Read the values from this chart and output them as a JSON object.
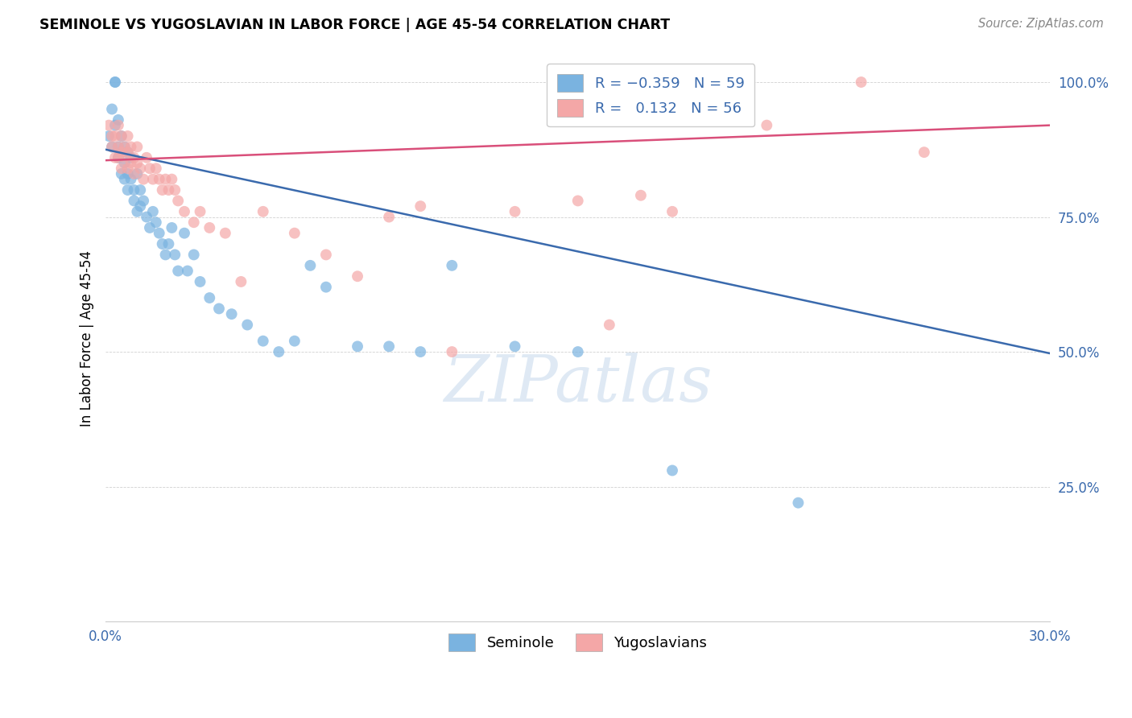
{
  "title": "SEMINOLE VS YUGOSLAVIAN IN LABOR FORCE | AGE 45-54 CORRELATION CHART",
  "source": "Source: ZipAtlas.com",
  "ylabel": "In Labor Force | Age 45-54",
  "xlim": [
    0.0,
    0.3
  ],
  "ylim": [
    0.0,
    1.05
  ],
  "xticks": [
    0.0,
    0.05,
    0.1,
    0.15,
    0.2,
    0.25,
    0.3
  ],
  "ytick_positions": [
    0.25,
    0.5,
    0.75,
    1.0
  ],
  "ytick_labels": [
    "25.0%",
    "50.0%",
    "75.0%",
    "100.0%"
  ],
  "seminole_R": -0.359,
  "seminole_N": 59,
  "yugoslavian_R": 0.132,
  "yugoslavian_N": 56,
  "seminole_color": "#7ab3e0",
  "yugoslavian_color": "#f4a7a7",
  "seminole_line_color": "#3a6aad",
  "yugoslavian_line_color": "#d94f7a",
  "watermark": "ZIPatlas",
  "seminole_x": [
    0.001,
    0.002,
    0.002,
    0.003,
    0.003,
    0.003,
    0.004,
    0.004,
    0.004,
    0.005,
    0.005,
    0.005,
    0.006,
    0.006,
    0.006,
    0.007,
    0.007,
    0.007,
    0.008,
    0.008,
    0.009,
    0.009,
    0.01,
    0.01,
    0.011,
    0.011,
    0.012,
    0.013,
    0.014,
    0.015,
    0.016,
    0.017,
    0.018,
    0.019,
    0.02,
    0.021,
    0.022,
    0.023,
    0.025,
    0.026,
    0.028,
    0.03,
    0.033,
    0.036,
    0.04,
    0.045,
    0.05,
    0.055,
    0.06,
    0.065,
    0.07,
    0.08,
    0.09,
    0.1,
    0.11,
    0.13,
    0.15,
    0.18,
    0.22
  ],
  "seminole_y": [
    0.9,
    0.88,
    0.95,
    1.0,
    1.0,
    0.92,
    0.88,
    0.86,
    0.93,
    0.87,
    0.83,
    0.9,
    0.88,
    0.85,
    0.82,
    0.87,
    0.83,
    0.8,
    0.86,
    0.82,
    0.8,
    0.78,
    0.83,
    0.76,
    0.8,
    0.77,
    0.78,
    0.75,
    0.73,
    0.76,
    0.74,
    0.72,
    0.7,
    0.68,
    0.7,
    0.73,
    0.68,
    0.65,
    0.72,
    0.65,
    0.68,
    0.63,
    0.6,
    0.58,
    0.57,
    0.55,
    0.52,
    0.5,
    0.52,
    0.66,
    0.62,
    0.51,
    0.51,
    0.5,
    0.66,
    0.51,
    0.5,
    0.28,
    0.22
  ],
  "yugoslavian_x": [
    0.001,
    0.002,
    0.002,
    0.003,
    0.003,
    0.004,
    0.004,
    0.004,
    0.005,
    0.005,
    0.005,
    0.006,
    0.006,
    0.007,
    0.007,
    0.007,
    0.008,
    0.008,
    0.009,
    0.009,
    0.01,
    0.01,
    0.011,
    0.012,
    0.013,
    0.014,
    0.015,
    0.016,
    0.017,
    0.018,
    0.019,
    0.02,
    0.021,
    0.022,
    0.023,
    0.025,
    0.028,
    0.03,
    0.033,
    0.038,
    0.043,
    0.05,
    0.06,
    0.07,
    0.08,
    0.09,
    0.1,
    0.11,
    0.13,
    0.15,
    0.16,
    0.17,
    0.18,
    0.21,
    0.24,
    0.26
  ],
  "yugoslavian_y": [
    0.92,
    0.88,
    0.9,
    0.86,
    0.9,
    0.92,
    0.88,
    0.86,
    0.9,
    0.87,
    0.84,
    0.88,
    0.86,
    0.9,
    0.87,
    0.84,
    0.88,
    0.85,
    0.86,
    0.83,
    0.85,
    0.88,
    0.84,
    0.82,
    0.86,
    0.84,
    0.82,
    0.84,
    0.82,
    0.8,
    0.82,
    0.8,
    0.82,
    0.8,
    0.78,
    0.76,
    0.74,
    0.76,
    0.73,
    0.72,
    0.63,
    0.76,
    0.72,
    0.68,
    0.64,
    0.75,
    0.77,
    0.5,
    0.76,
    0.78,
    0.55,
    0.79,
    0.76,
    0.92,
    1.0,
    0.87
  ]
}
